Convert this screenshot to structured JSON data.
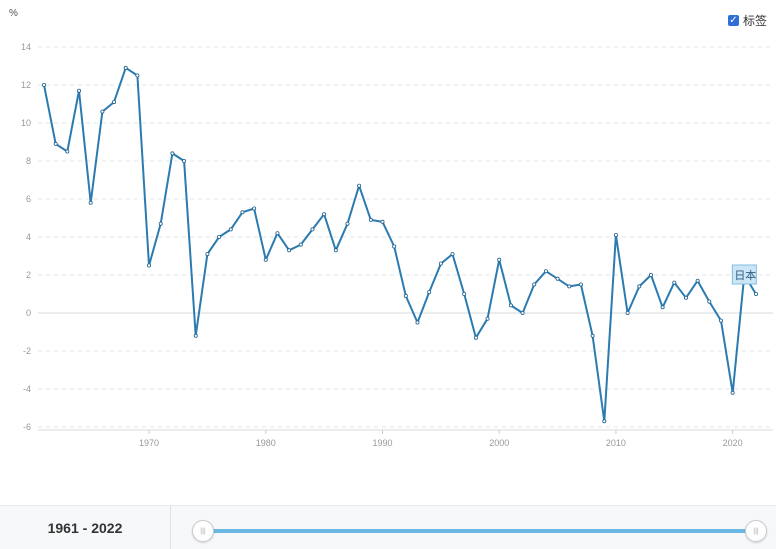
{
  "legend_toggle": {
    "label": "标签",
    "checked": true
  },
  "footer": {
    "start_year": "1961",
    "separator": " - ",
    "end_year": "2022",
    "handle_glyph": "|||"
  },
  "chart_data": {
    "type": "line",
    "ylabel": "%",
    "xlim": [
      1961,
      2022
    ],
    "ylim": [
      -6,
      14
    ],
    "yticks": [
      -6,
      -4,
      -2,
      0,
      2,
      4,
      6,
      8,
      10,
      12,
      14
    ],
    "xticks": [
      1970,
      1980,
      1990,
      2000,
      2010,
      2020
    ],
    "grid": true,
    "series_color": "#2b7bb0",
    "series": [
      {
        "name": "日本",
        "x": [
          1961,
          1962,
          1963,
          1964,
          1965,
          1966,
          1967,
          1968,
          1969,
          1970,
          1971,
          1972,
          1973,
          1974,
          1975,
          1976,
          1977,
          1978,
          1979,
          1980,
          1981,
          1982,
          1983,
          1984,
          1985,
          1986,
          1987,
          1988,
          1989,
          1990,
          1991,
          1992,
          1993,
          1994,
          1995,
          1996,
          1997,
          1998,
          1999,
          2000,
          2001,
          2002,
          2003,
          2004,
          2005,
          2006,
          2007,
          2008,
          2009,
          2010,
          2011,
          2012,
          2013,
          2014,
          2015,
          2016,
          2017,
          2018,
          2019,
          2020,
          2021,
          2022
        ],
        "values": [
          12.0,
          8.9,
          8.5,
          11.7,
          5.8,
          10.6,
          11.1,
          12.9,
          12.5,
          2.5,
          4.7,
          8.4,
          8.0,
          -1.2,
          3.1,
          4.0,
          4.4,
          5.3,
          5.5,
          2.8,
          4.2,
          3.3,
          3.6,
          4.4,
          5.2,
          3.3,
          4.7,
          6.7,
          4.9,
          4.8,
          3.5,
          0.9,
          -0.5,
          1.1,
          2.6,
          3.1,
          1.0,
          -1.3,
          -0.3,
          2.8,
          0.4,
          0.0,
          1.5,
          2.2,
          1.8,
          1.4,
          1.5,
          -1.2,
          -5.7,
          4.1,
          0.0,
          1.4,
          2.0,
          0.3,
          1.6,
          0.8,
          1.7,
          0.6,
          -0.4,
          -4.2,
          2.0,
          1.0
        ]
      }
    ]
  }
}
